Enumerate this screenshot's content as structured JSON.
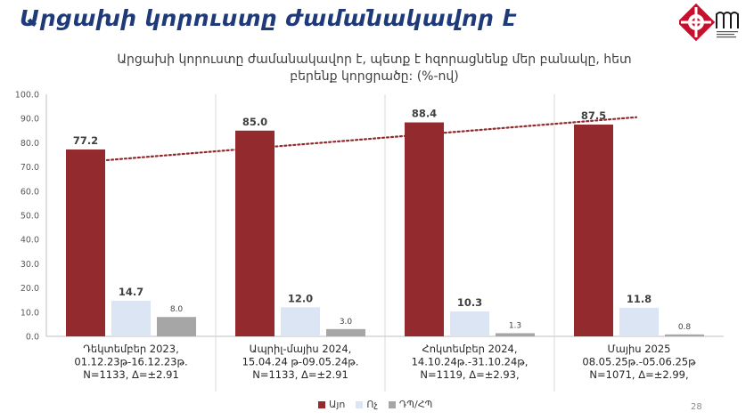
{
  "slide": {
    "title": "Արցախի կորուստը ժամանակավոր է",
    "page_number": "28"
  },
  "colors": {
    "title": "#1f3a78",
    "yes": "#922a2e",
    "no": "#dbe5f4",
    "dk": "#a6a6a6",
    "trend": "#922a2e",
    "logo_red": "#c8102e"
  },
  "chart_data": {
    "type": "bar",
    "title": "Արցախի կորուստը ժամանակավոր է, պետք է հզորացնենք մեր բանակը, հետ բերենք կորցրածը: (%-ով)",
    "title_lines": [
      "Արցախի կորուստը ժամանակավոր է, պետք է հզորացնենք մեր բանակը, հետ",
      "բերենք կորցրածը: (%-ով)"
    ],
    "ylim": [
      0,
      100
    ],
    "yticks": [
      "0.0",
      "10.0",
      "20.0",
      "30.0",
      "40.0",
      "50.0",
      "60.0",
      "70.0",
      "80.0",
      "90.0",
      "100.0"
    ],
    "grid": "vertical separators between groups",
    "legend_position": "bottom",
    "categories": [
      [
        "Դեկտեմբեր 2023,",
        "01.12.23թ-16.12.23թ.",
        "N=1133, Δ=±2.91"
      ],
      [
        "Ապրիլ-մայիս 2024,",
        "15.04.24 թ-09.05.24թ.",
        "N=1133, Δ=±2.91"
      ],
      [
        "Հոկտեմբեր 2024,",
        "14.10.24թ.-31.10.24թ,",
        "N=1119, Δ=±2.93,"
      ],
      [
        "Մայիս 2025",
        "08.05.25թ.-05.06.25թ",
        "N=1071, Δ=±2.99,"
      ]
    ],
    "series": [
      {
        "name": "Այո",
        "values": [
          77.2,
          85.0,
          88.4,
          87.5
        ],
        "labels": [
          "77.2",
          "85.0",
          "88.4",
          "87.5"
        ]
      },
      {
        "name": "Ոչ",
        "values": [
          14.7,
          12.0,
          10.3,
          11.8
        ],
        "labels": [
          "14.7",
          "12.0",
          "10.3",
          "11.8"
        ]
      },
      {
        "name": "ԴՊ/ՀՊ",
        "values": [
          8.0,
          3.0,
          1.3,
          0.8
        ],
        "labels": [
          "8.0",
          "3.0",
          "1.3",
          "0.8"
        ]
      }
    ],
    "trendline": {
      "series": "Այո",
      "style": "dotted"
    }
  }
}
